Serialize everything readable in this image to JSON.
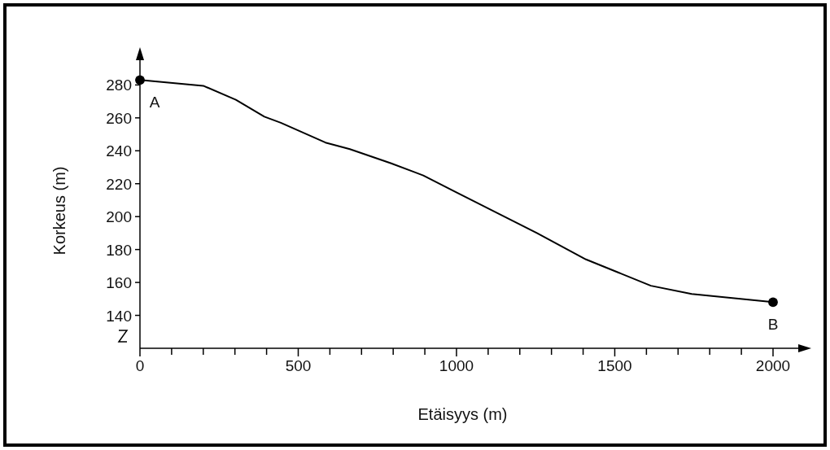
{
  "chart_data": {
    "type": "line",
    "xlabel": "Etäisyys (m)",
    "ylabel": "Korkeus (m)",
    "xlim": [
      0,
      2090
    ],
    "ylim": [
      120,
      297
    ],
    "xticks": [
      0,
      {
        "value": 100,
        "label": null
      },
      {
        "value": 200,
        "label": null
      },
      {
        "value": 300,
        "label": null
      },
      {
        "value": 400,
        "label": null
      },
      500,
      {
        "value": 600,
        "label": null
      },
      {
        "value": 700,
        "label": null
      },
      {
        "value": 800,
        "label": null
      },
      {
        "value": 900,
        "label": null
      },
      1000,
      {
        "value": 1100,
        "label": null
      },
      {
        "value": 1200,
        "label": null
      },
      {
        "value": 1300,
        "label": null
      },
      {
        "value": 1400,
        "label": null
      },
      1500,
      {
        "value": 1600,
        "label": null
      },
      {
        "value": 1700,
        "label": null
      },
      {
        "value": 1800,
        "label": null
      },
      {
        "value": 1900,
        "label": null
      },
      2000
    ],
    "yticks": [
      140,
      160,
      180,
      200,
      220,
      240,
      260,
      280
    ],
    "grid": false,
    "annotations": [
      {
        "text": "A",
        "x": 0,
        "y": 283
      },
      {
        "text": "B",
        "x": 2000,
        "y": 148
      }
    ],
    "series": [
      {
        "color": "#000000",
        "marker": "none",
        "x": [
          0,
          200,
          303,
          393,
          445,
          586,
          663,
          792,
          895,
          997,
          1100,
          1254,
          1409,
          1512,
          1614,
          1743,
          2000
        ],
        "values": [
          283,
          279.5,
          271,
          260.7,
          257,
          245,
          241,
          232.5,
          225,
          215,
          205,
          190,
          174,
          166,
          158,
          153,
          148
        ]
      },
      {
        "type": "scatter",
        "color": "#000000",
        "marker": "circle",
        "x": [
          0,
          2000
        ],
        "values": [
          283,
          148
        ]
      }
    ]
  }
}
